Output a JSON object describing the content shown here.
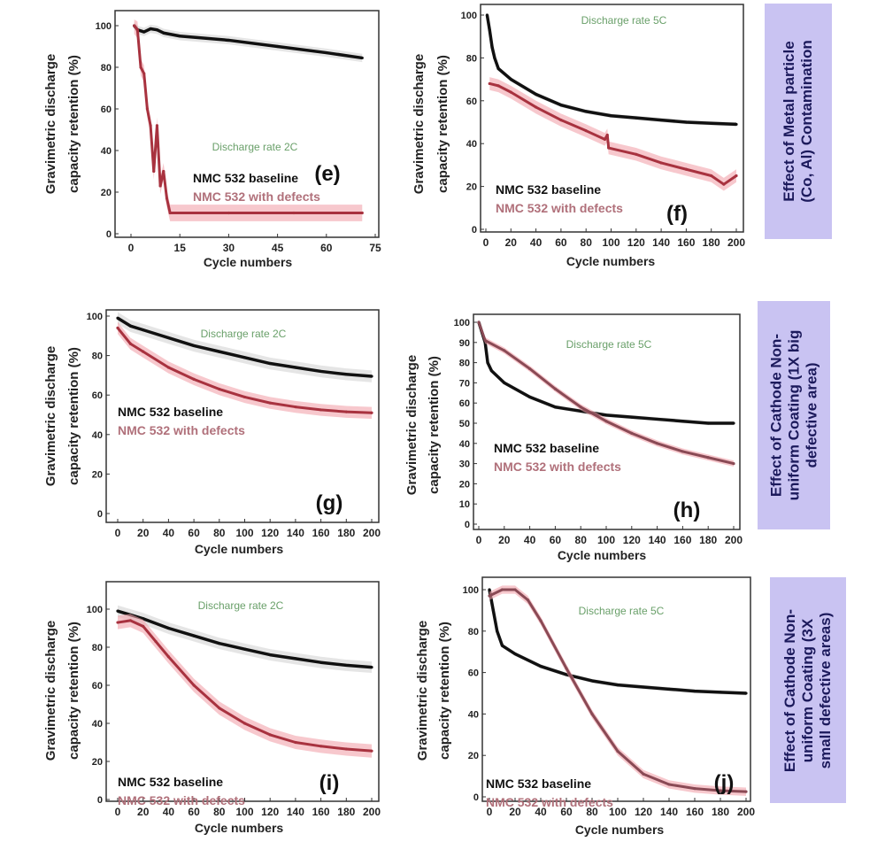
{
  "colors": {
    "baseline": "#111111",
    "defects": "#a8323f",
    "defects_band": "#f2a3ab",
    "baseline_band": "#cccccc",
    "rate_text": "#6aa06a",
    "side_panel": "#c9c3f2"
  },
  "side_labels": [
    "Effect of Metal particle\n(Co, Al) Contamination",
    "Effect of Cathode Non-\nuniform Coating (1X big\ndefective area)",
    "Effect of Cathode Non-\nuniform Coating (3X\nsmall defective areas)"
  ],
  "chart_data": [
    {
      "id": "e",
      "type": "line",
      "panel_label": "(e)",
      "rate": "Discharge rate 2C",
      "xlabel": "Cycle numbers",
      "ylabel": [
        "Gravimetric discharge",
        "capacity retention (%)"
      ],
      "xlim": [
        0,
        75
      ],
      "ylim": [
        0,
        100
      ],
      "xticks": [
        "0",
        "15",
        "30",
        "45",
        "60",
        "75"
      ],
      "yticks": [
        "0",
        "20",
        "40",
        "60",
        "80",
        "100"
      ],
      "series": [
        {
          "name": "NMC  532 baseline",
          "color": "#111111",
          "band": 2,
          "points": [
            [
              1,
              100
            ],
            [
              2,
              98
            ],
            [
              4,
              97
            ],
            [
              6,
              98.5
            ],
            [
              8,
              98
            ],
            [
              10,
              96.5
            ],
            [
              15,
              95
            ],
            [
              30,
              93
            ],
            [
              45,
              90
            ],
            [
              60,
              87
            ],
            [
              71,
              84.5
            ]
          ]
        },
        {
          "name": "NMC  532 with defects",
          "color": "#a8323f",
          "band": 4,
          "points": [
            [
              1,
              100
            ],
            [
              2,
              98
            ],
            [
              3,
              80
            ],
            [
              4,
              77
            ],
            [
              5,
              60
            ],
            [
              6,
              52
            ],
            [
              7,
              30
            ],
            [
              8,
              52
            ],
            [
              9,
              23
            ],
            [
              10,
              30
            ],
            [
              11,
              17
            ],
            [
              12,
              10
            ],
            [
              30,
              10
            ],
            [
              50,
              10
            ],
            [
              71,
              10
            ]
          ]
        }
      ]
    },
    {
      "id": "f",
      "type": "line",
      "panel_label": "(f)",
      "rate": "Discharge rate 5C",
      "xlabel": "Cycle numbers",
      "ylabel": [
        "Gravimetric discharge",
        "capacity retention (%)"
      ],
      "xlim": [
        0,
        200
      ],
      "ylim": [
        0,
        100
      ],
      "xticks": [
        "0",
        "20",
        "40",
        "60",
        "80",
        "100",
        "120",
        "140",
        "160",
        "180",
        "200"
      ],
      "yticks": [
        "0",
        "20",
        "40",
        "60",
        "80",
        "100"
      ],
      "series": [
        {
          "name": "NMC  532 baseline",
          "color": "#111111",
          "band": 1,
          "points": [
            [
              1,
              100
            ],
            [
              3,
              93
            ],
            [
              5,
              85
            ],
            [
              7,
              80
            ],
            [
              10,
              75
            ],
            [
              20,
              70
            ],
            [
              40,
              63
            ],
            [
              60,
              58
            ],
            [
              80,
              55
            ],
            [
              100,
              53
            ],
            [
              120,
              52
            ],
            [
              140,
              51
            ],
            [
              160,
              50
            ],
            [
              180,
              49.5
            ],
            [
              200,
              49
            ]
          ]
        },
        {
          "name": "NMC  532 with defects",
          "color": "#a8323f",
          "band": 3,
          "points": [
            [
              3,
              68
            ],
            [
              10,
              67
            ],
            [
              20,
              64
            ],
            [
              40,
              57
            ],
            [
              60,
              51
            ],
            [
              80,
              46
            ],
            [
              95,
              42
            ],
            [
              97,
              44
            ],
            [
              98,
              38
            ],
            [
              120,
              35
            ],
            [
              140,
              31
            ],
            [
              160,
              28
            ],
            [
              180,
              25
            ],
            [
              190,
              21
            ],
            [
              200,
              25
            ]
          ]
        }
      ]
    },
    {
      "id": "g",
      "type": "line",
      "panel_label": "(g)",
      "rate": "Discharge rate 2C",
      "xlabel": "Cycle numbers",
      "ylabel": [
        "Gravimetric discharge",
        "capacity retention (%)"
      ],
      "xlim": [
        0,
        200
      ],
      "ylim": [
        0,
        100
      ],
      "xticks": [
        "0",
        "20",
        "40",
        "60",
        "80",
        "100",
        "120",
        "140",
        "160",
        "180",
        "200"
      ],
      "yticks": [
        "0",
        "20",
        "40",
        "60",
        "80",
        "100"
      ],
      "series": [
        {
          "name": "NMC  532 baseline",
          "color": "#111111",
          "band": 3,
          "points": [
            [
              0,
              99
            ],
            [
              10,
              95
            ],
            [
              20,
              93
            ],
            [
              40,
              89
            ],
            [
              60,
              85
            ],
            [
              80,
              82
            ],
            [
              100,
              79
            ],
            [
              120,
              76
            ],
            [
              140,
              74
            ],
            [
              160,
              72
            ],
            [
              180,
              70.5
            ],
            [
              200,
              69.5
            ]
          ]
        },
        {
          "name": "NMC  532 with defects",
          "color": "#a8323f",
          "band": 3,
          "points": [
            [
              0,
              94
            ],
            [
              10,
              86
            ],
            [
              20,
              82
            ],
            [
              40,
              74
            ],
            [
              60,
              68
            ],
            [
              80,
              63
            ],
            [
              100,
              59
            ],
            [
              120,
              56
            ],
            [
              140,
              54
            ],
            [
              160,
              52.5
            ],
            [
              180,
              51.5
            ],
            [
              200,
              51
            ]
          ]
        }
      ]
    },
    {
      "id": "h",
      "type": "line",
      "panel_label": "(h)",
      "rate": "Discharge rate 5C",
      "xlabel": "Cycle numbers",
      "ylabel": [
        "Gravimetric discharge",
        "capacity retention (%)"
      ],
      "xlim": [
        0,
        200
      ],
      "ylim": [
        0,
        100
      ],
      "xticks": [
        "0",
        "20",
        "40",
        "60",
        "80",
        "100",
        "120",
        "140",
        "160",
        "180",
        "200"
      ],
      "yticks": [
        "0",
        "10",
        "20",
        "30",
        "40",
        "50",
        "60",
        "70",
        "80",
        "90",
        "100"
      ],
      "series": [
        {
          "name": "NMC  532 baseline",
          "color": "#111111",
          "band": 1,
          "points": [
            [
              0,
              100
            ],
            [
              5,
              90
            ],
            [
              7,
              80
            ],
            [
              10,
              76
            ],
            [
              20,
              70
            ],
            [
              40,
              63
            ],
            [
              60,
              58
            ],
            [
              80,
              56
            ],
            [
              100,
              54
            ],
            [
              120,
              53
            ],
            [
              140,
              52
            ],
            [
              160,
              51
            ],
            [
              180,
              50
            ],
            [
              200,
              50
            ]
          ]
        },
        {
          "name": "NMC  532 with defects",
          "color": "#8a4a55",
          "band": 1.5,
          "points": [
            [
              0,
              100
            ],
            [
              5,
              91
            ],
            [
              20,
              86
            ],
            [
              40,
              77
            ],
            [
              60,
              67
            ],
            [
              80,
              58
            ],
            [
              100,
              51
            ],
            [
              120,
              45
            ],
            [
              140,
              40
            ],
            [
              160,
              36
            ],
            [
              180,
              33
            ],
            [
              200,
              30
            ]
          ]
        }
      ]
    },
    {
      "id": "i",
      "type": "line",
      "panel_label": "(i)",
      "rate": "Discharge rate 2C",
      "xlabel": "Cycle numbers",
      "ylabel": [
        "Gravimetric discharge",
        "capacity retention (%)"
      ],
      "xlim": [
        0,
        200
      ],
      "ylim": [
        0,
        100
      ],
      "xticks": [
        "0",
        "20",
        "40",
        "60",
        "80",
        "100",
        "120",
        "140",
        "160",
        "180",
        "200"
      ],
      "yticks": [
        "0",
        "20",
        "40",
        "60",
        "80",
        "100"
      ],
      "series": [
        {
          "name": "NMC  532 baseline",
          "color": "#111111",
          "band": 3,
          "points": [
            [
              0,
              99
            ],
            [
              10,
              97
            ],
            [
              20,
              95
            ],
            [
              40,
              90
            ],
            [
              60,
              86
            ],
            [
              80,
              82
            ],
            [
              100,
              79
            ],
            [
              120,
              76
            ],
            [
              140,
              74
            ],
            [
              160,
              72
            ],
            [
              180,
              70.5
            ],
            [
              200,
              69.5
            ]
          ]
        },
        {
          "name": "NMC  532 with defects",
          "color": "#a8323f",
          "band": 3.5,
          "points": [
            [
              0,
              93
            ],
            [
              10,
              94
            ],
            [
              20,
              91
            ],
            [
              30,
              83
            ],
            [
              40,
              75
            ],
            [
              60,
              60
            ],
            [
              80,
              48
            ],
            [
              100,
              40
            ],
            [
              120,
              34
            ],
            [
              140,
              30
            ],
            [
              160,
              28
            ],
            [
              180,
              26.5
            ],
            [
              200,
              25.5
            ]
          ]
        }
      ]
    },
    {
      "id": "j",
      "type": "line",
      "panel_label": "(j)",
      "rate": "Discharge rate 5C",
      "xlabel": "Cycle numbers",
      "ylabel": [
        "Gravimetric discharge",
        "capacity retention (%)"
      ],
      "xlim": [
        0,
        200
      ],
      "ylim": [
        0,
        100
      ],
      "xticks": [
        "0",
        "20",
        "40",
        "60",
        "80",
        "100",
        "120",
        "140",
        "160",
        "180",
        "200"
      ],
      "yticks": [
        "0",
        "20",
        "40",
        "60",
        "80",
        "100"
      ],
      "series": [
        {
          "name": "NMC  532 baseline",
          "color": "#111111",
          "band": 1,
          "points": [
            [
              0,
              100
            ],
            [
              3,
              90
            ],
            [
              6,
              80
            ],
            [
              10,
              73
            ],
            [
              20,
              69
            ],
            [
              40,
              63
            ],
            [
              60,
              59
            ],
            [
              80,
              56
            ],
            [
              100,
              54
            ],
            [
              120,
              53
            ],
            [
              140,
              52
            ],
            [
              160,
              51
            ],
            [
              180,
              50.5
            ],
            [
              200,
              50
            ]
          ]
        },
        {
          "name": "NMC  532 with defects",
          "color": "#8a4a55",
          "band": 2,
          "points": [
            [
              0,
              97
            ],
            [
              10,
              100
            ],
            [
              20,
              100
            ],
            [
              30,
              95
            ],
            [
              40,
              85
            ],
            [
              60,
              62
            ],
            [
              80,
              40
            ],
            [
              100,
              22
            ],
            [
              120,
              11
            ],
            [
              140,
              6
            ],
            [
              160,
              4
            ],
            [
              180,
              3
            ],
            [
              200,
              2.5
            ]
          ]
        }
      ]
    }
  ]
}
